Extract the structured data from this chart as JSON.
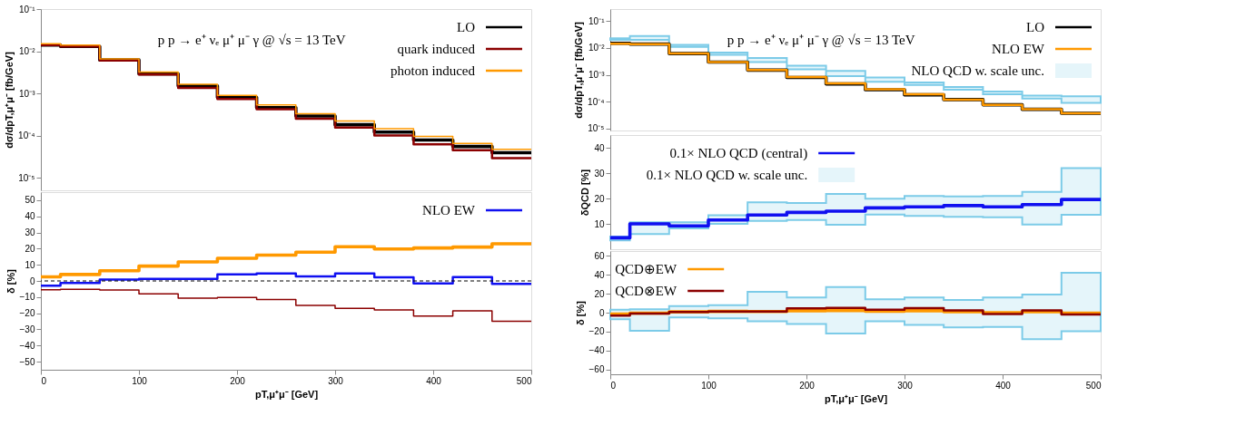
{
  "chart_data": [
    {
      "type": "step",
      "annotations": [
        "p p → e⁺ νₑ μ⁺ μ⁻ γ @ √s = 13 TeV"
      ],
      "ylabel": "dσ/dpT,μ⁺μ⁻ [fb/GeV]",
      "log": true,
      "legend": "top right",
      "tick_labels": "y",
      "grid": false,
      "x": [
        0,
        20,
        60,
        100,
        140,
        180,
        220,
        260,
        300,
        340,
        380,
        420,
        460,
        500
      ],
      "xlim": [
        0,
        500
      ],
      "xticks": [
        0,
        100,
        200,
        300,
        400,
        500
      ],
      "ylim": [
        5e-06,
        0.1
      ],
      "yticks": [
        {
          "value": 1e-05,
          "label": "10⁻⁵"
        },
        {
          "value": 0.0001,
          "label": "10⁻⁴"
        },
        {
          "value": 0.001,
          "label": "10⁻³"
        },
        {
          "value": 0.01,
          "label": "10⁻²"
        },
        {
          "value": 0.1,
          "label": "10⁻¹"
        }
      ],
      "series": [
        {
          "name": "LO",
          "color": "#000000",
          "values": [
            0.014,
            0.013,
            0.0062,
            0.0029,
            0.0015,
            0.0008,
            0.00046,
            0.00029,
            0.00018,
            0.00012,
            7.8e-05,
            5.5e-05,
            3.9e-05,
            3.9e-05
          ]
        },
        {
          "name": "quark induced",
          "color": "#8b0000",
          "values": [
            0.014,
            0.013,
            0.006,
            0.0028,
            0.00135,
            0.00073,
            0.00042,
            0.00025,
            0.000155,
            0.0001,
            6.2e-05,
            4.5e-05,
            2.9e-05,
            2.9e-05
          ]
        },
        {
          "name": "photon induced",
          "color": "#ff9900",
          "values": [
            0.015,
            0.014,
            0.0066,
            0.0032,
            0.00165,
            0.0009,
            0.00053,
            0.00033,
            0.00022,
            0.000145,
            9.5e-05,
            6.5e-05,
            4.7e-05,
            4.7e-05
          ]
        }
      ]
    },
    {
      "type": "step",
      "ylabel": "δ [%]",
      "xlabel": "pT,μ⁺μ⁻ [GeV]",
      "legend": "top right",
      "grid": false,
      "x": [
        0,
        20,
        60,
        100,
        140,
        180,
        220,
        260,
        300,
        340,
        380,
        420,
        460,
        500
      ],
      "xlim": [
        0,
        500
      ],
      "xticks": [
        0,
        100,
        200,
        300,
        400,
        500
      ],
      "ylim": [
        -55,
        55
      ],
      "yticks": [
        -50,
        -40,
        -30,
        -20,
        -10,
        0,
        10,
        20,
        30,
        40,
        50
      ],
      "ref_lines": [
        {
          "axis": "y",
          "value": 0,
          "color": "#000000",
          "line_style": "dashed"
        }
      ],
      "series": [
        {
          "color": "#ff9900",
          "values": [
            2.5,
            4,
            6.3,
            9.2,
            11.8,
            14,
            16,
            17.8,
            21.2,
            19.8,
            20.4,
            21,
            23,
            23
          ]
        },
        {
          "name": "NLO EW",
          "color": "#1010f0",
          "values": [
            -3,
            -1.2,
            0.8,
            1.3,
            1.2,
            4,
            4.7,
            2.8,
            4.6,
            2.2,
            -1.5,
            2.4,
            -1.8,
            -1.8
          ]
        },
        {
          "color": "#8b0000",
          "values": [
            -5.5,
            -5.2,
            -5.6,
            -8,
            -10.7,
            -10.2,
            -11.5,
            -15.2,
            -17,
            -18,
            -21.7,
            -18.5,
            -25,
            -25
          ]
        }
      ]
    },
    {
      "type": "step",
      "annotations": [
        "p p → e⁺ νₑ μ⁺ μ⁻ γ @ √s = 13 TeV"
      ],
      "ylabel": "dσ/dpT,μ⁺μ⁻ [fb/GeV]",
      "log": true,
      "legend": "top right",
      "tick_labels": "y",
      "grid": false,
      "x": [
        0,
        20,
        60,
        100,
        140,
        180,
        220,
        260,
        300,
        340,
        380,
        420,
        460,
        500
      ],
      "xlim": [
        0,
        500
      ],
      "xticks": [
        0,
        100,
        200,
        300,
        400,
        500
      ],
      "ylim": [
        8.5e-06,
        0.28
      ],
      "yticks": [
        {
          "value": 1e-05,
          "label": "10⁻⁵"
        },
        {
          "value": 0.0001,
          "label": "10⁻⁴"
        },
        {
          "value": 0.001,
          "label": "10⁻³"
        },
        {
          "value": 0.01,
          "label": "10⁻²"
        },
        {
          "value": 0.1,
          "label": "10⁻¹"
        }
      ],
      "series": [
        {
          "name": "LO",
          "color": "#000000",
          "values": [
            0.015,
            0.014,
            0.0062,
            0.003,
            0.0015,
            0.0008,
            0.00046,
            0.00028,
            0.00018,
            0.00012,
            7.7e-05,
            5.2e-05,
            3.7e-05,
            3.7e-05
          ]
        },
        {
          "name": "NLO EW",
          "color": "#ff9900",
          "values": [
            0.0145,
            0.0138,
            0.0062,
            0.003,
            0.0015,
            0.00083,
            0.00048,
            0.00029,
            0.00019,
            0.00012,
            7.6e-05,
            5.3e-05,
            3.7e-05,
            3.7e-05
          ]
        },
        {
          "name": "NLO QCD w. scale unc.",
          "color": "#7ccbe8",
          "values": [
            null,
            null,
            null,
            null,
            null,
            null,
            null,
            null,
            null,
            null,
            null,
            null,
            null,
            null
          ],
          "lower": [
            0.02,
            0.02,
            0.011,
            0.0056,
            0.003,
            0.0016,
            0.0009,
            0.00055,
            0.00042,
            0.00028,
            0.00019,
            0.00013,
            9e-05,
            9e-05
          ],
          "upper": [
            0.023,
            0.028,
            0.013,
            0.0068,
            0.0042,
            0.0022,
            0.0014,
            0.0008,
            0.00052,
            0.00035,
            0.00024,
            0.00017,
            0.00016,
            0.00016
          ]
        }
      ]
    },
    {
      "type": "step",
      "ylabel": "δQCD [%]",
      "legend": "top left",
      "tick_labels": "y",
      "grid": false,
      "x": [
        0,
        20,
        60,
        100,
        140,
        180,
        220,
        260,
        300,
        340,
        380,
        420,
        460,
        500
      ],
      "xlim": [
        0,
        500
      ],
      "xticks": [
        0,
        100,
        200,
        300,
        400,
        500
      ],
      "ylim": [
        0,
        45
      ],
      "yticks": [
        10,
        20,
        30,
        40
      ],
      "series": [
        {
          "name": "0.1× NLO QCD (central)",
          "color": "#1010f0",
          "values": [
            4.5,
            10,
            9.2,
            11.5,
            13.5,
            14.5,
            15,
            16.3,
            16.7,
            17.2,
            16.7,
            17.6,
            19.6,
            19.6
          ]
        },
        {
          "name": "0.1× NLO QCD w. scale unc.",
          "color": "#7ccbe8",
          "values": [
            null,
            null,
            null,
            null,
            null,
            null,
            null,
            null,
            null,
            null,
            null,
            null,
            null,
            null
          ],
          "lower": [
            3.5,
            6,
            8.2,
            10,
            11.2,
            11.5,
            9.6,
            13.7,
            13.1,
            12.8,
            12.6,
            9.7,
            13.6,
            13.6
          ],
          "upper": [
            5,
            10.6,
            10.6,
            13.4,
            18.5,
            18.2,
            21.8,
            19.9,
            21,
            20.8,
            21,
            22.6,
            32,
            32
          ]
        }
      ]
    },
    {
      "type": "step",
      "ylabel": "δ [%]",
      "xlabel": "pT,μ⁺μ⁻ [GeV]",
      "legend": "top left",
      "grid": false,
      "x": [
        0,
        20,
        60,
        100,
        140,
        180,
        220,
        260,
        300,
        340,
        380,
        420,
        460,
        500
      ],
      "xlim": [
        0,
        500
      ],
      "xticks": [
        0,
        100,
        200,
        300,
        400,
        500
      ],
      "ylim": [
        -65,
        65
      ],
      "yticks": [
        -60,
        -40,
        -20,
        0,
        20,
        40,
        60
      ],
      "series": [
        {
          "name": "QCD⊕EW",
          "color": "#ff9900",
          "values": [
            -1.5,
            -0.5,
            0.8,
            1.3,
            1.2,
            2,
            2.3,
            1.5,
            2,
            1,
            0,
            1,
            -0.5,
            -0.5
          ]
        },
        {
          "name": "QCD⊗EW",
          "color": "#8b0000",
          "values": [
            -3,
            -1,
            0.8,
            1.3,
            1.2,
            4.5,
            5,
            3.2,
            4.7,
            2.5,
            -1.5,
            2.5,
            -1.8,
            -1.8
          ]
        },
        {
          "color": "#7ccbe8",
          "values": [
            null,
            null,
            null,
            null,
            null,
            null,
            null,
            null,
            null,
            null,
            null,
            null,
            null,
            null
          ],
          "lower": [
            -7,
            -19,
            -5,
            -6,
            -9,
            -12,
            -22,
            -9,
            -13,
            -15.5,
            -15,
            -28,
            -19.5,
            -19.5
          ],
          "upper": [
            3,
            3.5,
            7,
            8,
            22,
            16,
            27,
            14,
            16,
            13.5,
            16,
            19,
            42,
            42
          ]
        }
      ]
    }
  ]
}
